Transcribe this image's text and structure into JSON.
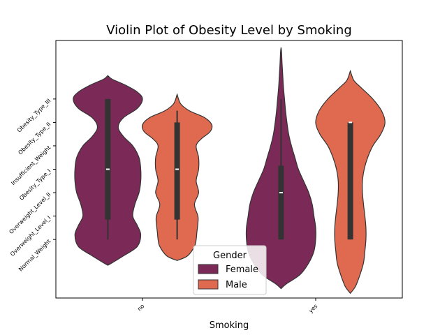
{
  "chart_data": {
    "type": "violin",
    "title": "Violin Plot of Obesity Level by Smoking",
    "xlabel": "Smoking",
    "ylabel": "",
    "categories": [
      "no",
      "yes"
    ],
    "y_tick_labels": [
      "Normal_Weight",
      "Overweight_Level_I",
      "Overweight_Level_II",
      "Obesity_Type_I",
      "Insufficient_Weight",
      "Obesity_Type_II",
      "Obesity_Type_III"
    ],
    "y_tick_values": [
      0,
      1,
      2,
      3,
      4,
      5,
      6
    ],
    "ylim": [
      8.5,
      -2.5
    ],
    "grid": false,
    "legend": {
      "title": "Gender",
      "position": "lower-center"
    },
    "series": [
      {
        "name": "Female",
        "color": "#7b2a58",
        "violins": [
          {
            "category": "no",
            "quartiles": [
              0.85,
              3.0,
              6.0
            ],
            "whiskers": [
              0.0,
              6.0
            ],
            "median": 3.0,
            "profile": [
              [
                -1.1,
                0.0
              ],
              [
                -1.0,
                0.12
              ],
              [
                -0.7,
                0.45
              ],
              [
                -0.3,
                0.85
              ],
              [
                0.2,
                0.95
              ],
              [
                0.6,
                0.85
              ],
              [
                1.0,
                0.72
              ],
              [
                1.5,
                0.78
              ],
              [
                2.0,
                0.9
              ],
              [
                2.5,
                0.95
              ],
              [
                3.0,
                0.95
              ],
              [
                3.5,
                0.9
              ],
              [
                4.0,
                0.72
              ],
              [
                4.4,
                0.45
              ],
              [
                4.8,
                0.3
              ],
              [
                5.2,
                0.45
              ],
              [
                5.6,
                0.85
              ],
              [
                6.0,
                1.0
              ],
              [
                6.3,
                0.85
              ],
              [
                6.6,
                0.5
              ],
              [
                6.85,
                0.12
              ],
              [
                7.0,
                0.0
              ]
            ]
          },
          {
            "category": "yes",
            "quartiles": [
              0.0,
              2.0,
              3.15
            ],
            "whiskers": [
              0.0,
              6.0
            ],
            "median": 2.0,
            "profile": [
              [
                -2.1,
                0.0
              ],
              [
                -1.9,
                0.15
              ],
              [
                -1.5,
                0.55
              ],
              [
                -1.0,
                0.8
              ],
              [
                -0.5,
                0.95
              ],
              [
                0.0,
                1.0
              ],
              [
                0.5,
                1.0
              ],
              [
                1.0,
                0.95
              ],
              [
                1.5,
                0.9
              ],
              [
                2.0,
                0.8
              ],
              [
                2.5,
                0.65
              ],
              [
                3.0,
                0.5
              ],
              [
                3.5,
                0.4
              ],
              [
                4.0,
                0.3
              ],
              [
                4.5,
                0.22
              ],
              [
                5.0,
                0.17
              ],
              [
                5.5,
                0.13
              ],
              [
                6.0,
                0.1
              ],
              [
                6.5,
                0.07
              ],
              [
                7.0,
                0.05
              ],
              [
                7.5,
                0.03
              ],
              [
                8.0,
                0.015
              ],
              [
                8.2,
                0.0
              ]
            ]
          }
        ]
      },
      {
        "name": "Male",
        "color": "#e06a50",
        "violins": [
          {
            "category": "no",
            "quartiles": [
              0.85,
              3.0,
              5.0
            ],
            "whiskers": [
              0.0,
              5.5
            ],
            "median": 3.0,
            "profile": [
              [
                -0.9,
                0.0
              ],
              [
                -0.7,
                0.3
              ],
              [
                -0.3,
                0.5
              ],
              [
                0.0,
                0.55
              ],
              [
                0.3,
                0.57
              ],
              [
                0.7,
                0.6
              ],
              [
                1.0,
                0.6
              ],
              [
                1.5,
                0.5
              ],
              [
                2.0,
                0.62
              ],
              [
                2.5,
                0.55
              ],
              [
                3.0,
                0.62
              ],
              [
                3.5,
                0.62
              ],
              [
                4.0,
                0.55
              ],
              [
                4.3,
                0.7
              ],
              [
                4.6,
                0.95
              ],
              [
                4.9,
                1.0
              ],
              [
                5.2,
                0.8
              ],
              [
                5.5,
                0.35
              ],
              [
                5.8,
                0.1
              ],
              [
                6.2,
                0.0
              ]
            ]
          },
          {
            "category": "yes",
            "quartiles": [
              0.0,
              5.0,
              5.0
            ],
            "whiskers": [
              0.0,
              5.0
            ],
            "median": 5.0,
            "profile": [
              [
                -2.3,
                0.0
              ],
              [
                -2.0,
                0.15
              ],
              [
                -1.5,
                0.28
              ],
              [
                -1.0,
                0.38
              ],
              [
                -0.5,
                0.42
              ],
              [
                0.0,
                0.45
              ],
              [
                0.5,
                0.45
              ],
              [
                1.0,
                0.42
              ],
              [
                1.5,
                0.38
              ],
              [
                2.0,
                0.35
              ],
              [
                2.5,
                0.35
              ],
              [
                3.0,
                0.4
              ],
              [
                3.5,
                0.5
              ],
              [
                4.0,
                0.65
              ],
              [
                4.5,
                0.88
              ],
              [
                5.0,
                1.0
              ],
              [
                5.5,
                0.9
              ],
              [
                6.0,
                0.65
              ],
              [
                6.5,
                0.3
              ],
              [
                6.8,
                0.1
              ],
              [
                7.2,
                0.0
              ]
            ]
          }
        ]
      }
    ]
  }
}
